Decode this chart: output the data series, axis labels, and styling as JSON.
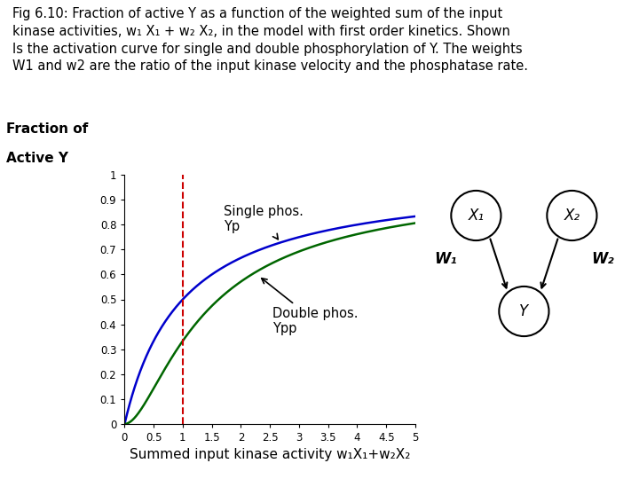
{
  "title_text": "Fig 6.10: Fraction of active Y as a function of the weighted sum of the input\nkinase activities, w₁ X₁ + w₂ X₂, in the model with first order kinetics. Shown\nIs the activation curve for single and double phosphorylation of Y. The weights\nW1 and w2 are the ratio of the input kinase velocity and the phosphatase rate.",
  "xlabel": "Summed input kinase activity w₁X₁+w₂X₂",
  "ylabel_line1": "Fraction of",
  "ylabel_line2": "Active Y",
  "xlim": [
    0,
    5
  ],
  "ylim": [
    0,
    1
  ],
  "xticks": [
    0,
    0.5,
    1,
    1.5,
    2,
    2.5,
    3,
    3.5,
    4,
    4.5,
    5
  ],
  "yticks": [
    0,
    0.1,
    0.2,
    0.3,
    0.4,
    0.5,
    0.6,
    0.7,
    0.8,
    0.9,
    1
  ],
  "ytick_labels": [
    "0",
    "0.1",
    "0.2",
    "0.3",
    "0.4",
    "0.5",
    "0.6",
    "0.7",
    "0.8",
    "0.9",
    "1"
  ],
  "xtick_labels": [
    "0",
    "0.5",
    "1",
    "1.5",
    "2",
    "2.5",
    "3",
    "3.5",
    "4",
    "4.5",
    "5"
  ],
  "vline_x": 1.0,
  "vline_color": "#cc0000",
  "single_phos_color": "#0000cc",
  "double_phos_color": "#006600",
  "background_color": "#ffffff",
  "annotation_single": "Single phos.\nYp",
  "annotation_double": "Double phos.\nYpp",
  "node_x1_label": "X₁",
  "node_x2_label": "X₂",
  "node_y_label": "Y",
  "w1_label": "W₁",
  "w2_label": "W₂",
  "title_fontsize": 10.5,
  "axis_fontsize": 10.5,
  "tick_fontsize": 8.5,
  "annot_fontsize": 10.5,
  "ylabel_fontsize": 11,
  "xlabel_fontsize": 11
}
